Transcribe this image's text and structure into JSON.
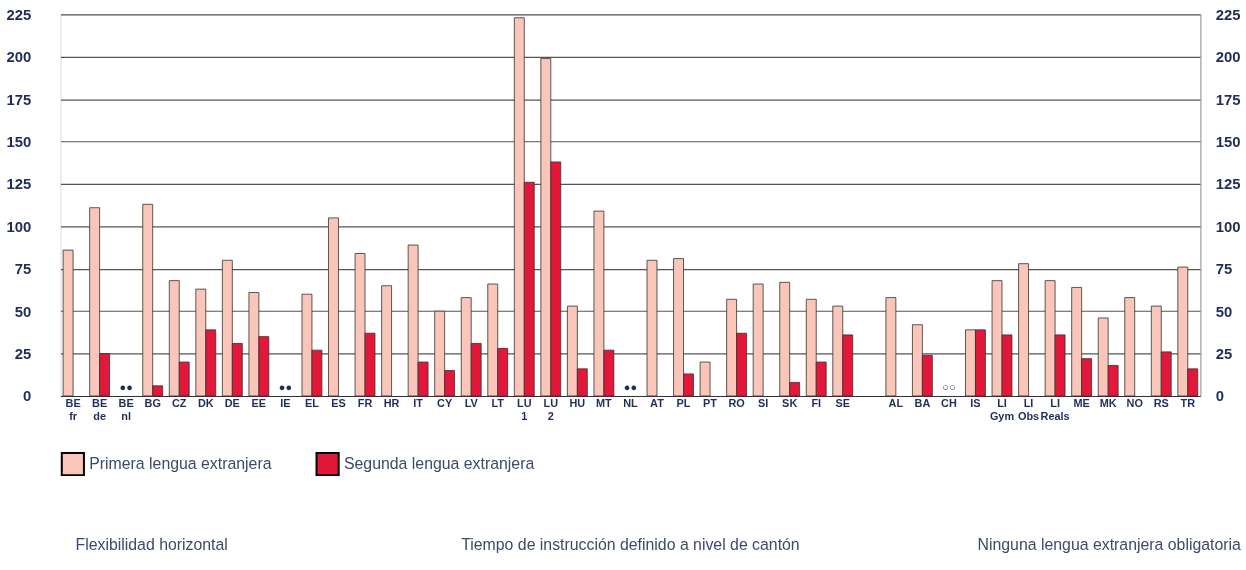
{
  "chart_data": {
    "type": "bar",
    "categories": [
      "BE fr",
      "BE de",
      "BE nl",
      "BG",
      "CZ",
      "DK",
      "DE",
      "EE",
      "IE",
      "EL",
      "ES",
      "FR",
      "HR",
      "IT",
      "CY",
      "LV",
      "LT",
      "LU 1",
      "LU 2",
      "HU",
      "MT",
      "NL",
      "AT",
      "PL",
      "PT",
      "RO",
      "SI",
      "SK",
      "FI",
      "SE",
      null,
      "AL",
      "BA",
      "CH",
      "IS",
      "LI Gym",
      "LI Obs",
      "LI Reals",
      "ME",
      "MK",
      "NO",
      "RS",
      "TR"
    ],
    "series": [
      {
        "name": "Primera lengua extranjera",
        "color": "#f9c6b9",
        "values": [
          86,
          111,
          null,
          113,
          68,
          63,
          80,
          61,
          null,
          60,
          105,
          84,
          65,
          89,
          50,
          58,
          66,
          223,
          199,
          53,
          109,
          null,
          80,
          81,
          20,
          57,
          66,
          67,
          57,
          53,
          null,
          58,
          42,
          null,
          39,
          68,
          78,
          68,
          64,
          46,
          58,
          53,
          76
        ]
      },
      {
        "name": "Segunda lengua extranjera",
        "color": "#e3173a",
        "values": [
          null,
          25,
          null,
          6,
          20,
          39,
          31,
          35,
          null,
          27,
          null,
          37,
          null,
          20,
          15,
          31,
          28,
          126,
          138,
          16,
          27,
          null,
          null,
          13,
          null,
          37,
          null,
          8,
          20,
          36,
          null,
          null,
          24,
          null,
          39,
          36,
          null,
          36,
          22,
          18,
          null,
          26,
          16
        ]
      }
    ],
    "ylim": [
      0,
      225
    ],
    "yticks": [
      0,
      25,
      50,
      75,
      100,
      125,
      150,
      175,
      200,
      225
    ],
    "y2lim": [
      0,
      225
    ],
    "y2ticks": [
      0,
      25,
      50,
      75,
      100,
      125,
      150,
      175,
      200,
      225
    ],
    "grid": "y",
    "legend": "bottom",
    "annotations": [
      "●●",
      "●●",
      "●●",
      "○○",
      "Flexibilidad horizontal",
      "Tiempo de instrucción definido a nivel de cantón",
      "Ninguna lengua extranjera obligatoria"
    ]
  }
}
